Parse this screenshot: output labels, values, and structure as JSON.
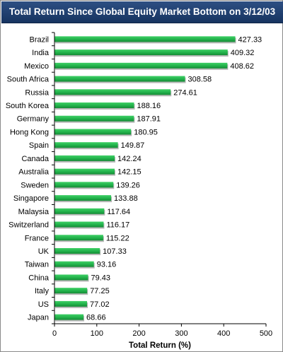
{
  "chart_data": {
    "type": "bar",
    "orientation": "horizontal",
    "title": "Total Return Since Global Equity Market Bottom on 3/12/03",
    "xlabel": "Total Return (%)",
    "ylabel": "",
    "xlim": [
      0,
      500
    ],
    "x_ticks": [
      "0",
      "100",
      "200",
      "300",
      "400",
      "500"
    ],
    "grid": false,
    "legend": "none",
    "bar_color": "#21b14a",
    "title_bar_color": "#1f3d6d",
    "categories": [
      "Brazil",
      "India",
      "Mexico",
      "South Africa",
      "Russia",
      "South Korea",
      "Germany",
      "Hong Kong",
      "Spain",
      "Canada",
      "Australia",
      "Sweden",
      "Singapore",
      "Malaysia",
      "Switzerland",
      "France",
      "UK",
      "Taiwan",
      "China",
      "Italy",
      "US",
      "Japan"
    ],
    "values": [
      427.33,
      409.32,
      408.62,
      308.58,
      274.61,
      188.16,
      187.91,
      180.95,
      149.87,
      142.24,
      142.15,
      139.26,
      133.88,
      117.64,
      116.17,
      115.22,
      107.33,
      93.16,
      79.43,
      77.25,
      77.02,
      68.66
    ],
    "value_labels": [
      "427.33",
      "409.32",
      "408.62",
      "308.58",
      "274.61",
      "188.16",
      "187.91",
      "180.95",
      "149.87",
      "142.24",
      "142.15",
      "139.26",
      "133.88",
      "117.64",
      "116.17",
      "115.22",
      "107.33",
      "93.16",
      "79.43",
      "77.25",
      "77.02",
      "68.66"
    ]
  }
}
